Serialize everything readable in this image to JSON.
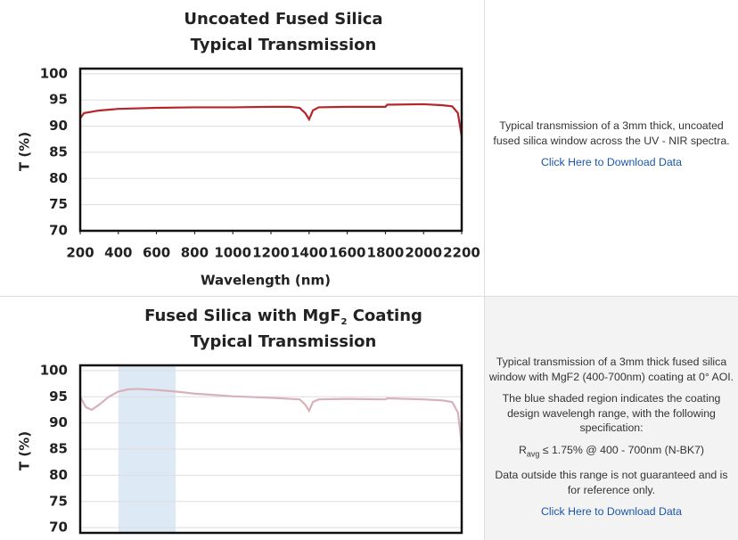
{
  "chart_data": [
    {
      "type": "line",
      "title": "Uncoated Fused Silica",
      "subtitle": "Typical Transmission",
      "xlabel": "Wavelength (nm)",
      "ylabel": "T (%)",
      "x": [
        200,
        220,
        300,
        400,
        600,
        800,
        1000,
        1200,
        1300,
        1350,
        1380,
        1400,
        1420,
        1450,
        1600,
        1800,
        1810,
        2000,
        2100,
        2150,
        2180,
        2200
      ],
      "series": [
        {
          "color": "#b5262b",
          "values": [
            91.5,
            92.5,
            93,
            93.3,
            93.5,
            93.6,
            93.6,
            93.7,
            93.7,
            93.5,
            92.5,
            91.3,
            93,
            93.6,
            93.7,
            93.7,
            94.1,
            94.2,
            94,
            93.8,
            92.5,
            88
          ]
        }
      ],
      "xlim": [
        200,
        2200
      ],
      "xticks": [
        200,
        400,
        600,
        800,
        1000,
        1200,
        1400,
        1600,
        1800,
        2000,
        2200
      ],
      "ylim": [
        70,
        101
      ],
      "yticks": [
        70,
        75,
        80,
        85,
        90,
        95,
        100
      ],
      "grid": true
    },
    {
      "type": "line",
      "title": "Fused Silica with MgF",
      "title_subscript": "2",
      "title_suffix": " Coating",
      "subtitle": "Typical Transmission",
      "ylabel": "T (%)",
      "shaded_region": {
        "range": [
          400,
          700
        ],
        "color": "#dde9f5"
      },
      "x": [
        200,
        230,
        260,
        300,
        350,
        400,
        450,
        500,
        600,
        700,
        800,
        1000,
        1200,
        1350,
        1380,
        1400,
        1420,
        1450,
        1600,
        1800,
        1810,
        2000,
        2100,
        2150,
        2180,
        2200
      ],
      "series": [
        {
          "color": "#d8b2bb",
          "values": [
            95,
            93,
            92.5,
            93.5,
            95,
            96,
            96.4,
            96.5,
            96.3,
            96,
            95.6,
            95.1,
            94.8,
            94.5,
            93.5,
            92.3,
            94,
            94.5,
            94.6,
            94.5,
            94.7,
            94.5,
            94.3,
            94,
            92,
            86
          ]
        }
      ],
      "xlim": [
        200,
        2200
      ],
      "ylim": [
        69,
        101
      ],
      "yticks": [
        70,
        75,
        80,
        85,
        90,
        95,
        100
      ],
      "grid": true
    }
  ],
  "descriptions": [
    {
      "paragraphs": [
        "Typical transmission of a 3mm thick, uncoated fused silica window across the UV - NIR spectra."
      ],
      "link": "Click Here to Download Data"
    },
    {
      "paragraphs": [
        "Typical transmission of a 3mm thick fused silica window with MgF2 (400-700nm) coating at 0° AOI.",
        "The blue shaded region indicates the coating design wavelengh range, with the following specification:"
      ],
      "spec": {
        "symbol": "R",
        "subscript": "avg",
        "text": " ≤ 1.75% @ 400 - 700nm (N-BK7)"
      },
      "note": "Data outside this range is not guaranteed and is for reference only.",
      "link": "Click Here to Download Data"
    }
  ]
}
